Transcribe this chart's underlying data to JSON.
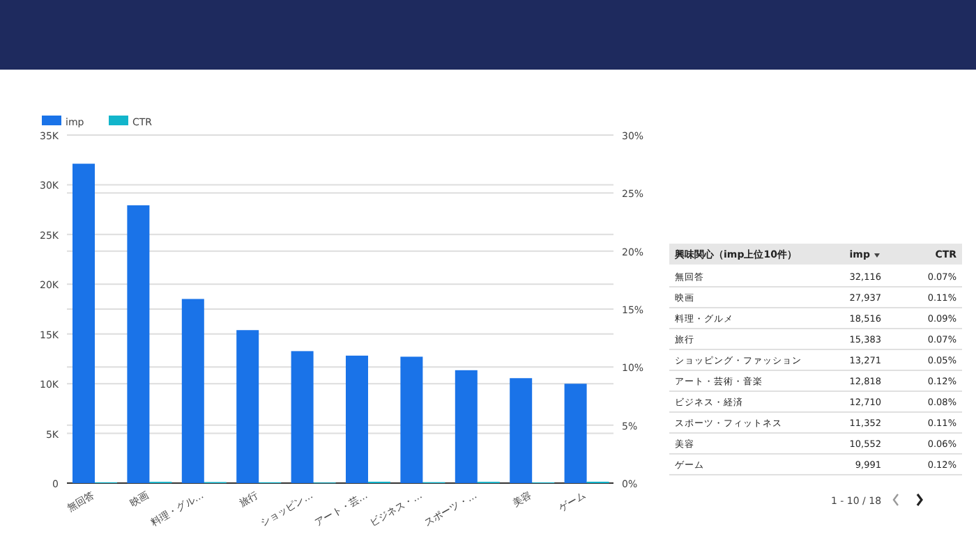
{
  "chart_data": [
    {
      "type": "bar",
      "categories": [
        "無回答",
        "映画",
        "料理・グル…",
        "旅行",
        "ショッピン…",
        "アート・芸…",
        "ビジネス・…",
        "スポーツ・…",
        "美容",
        "ゲーム"
      ],
      "series": [
        {
          "name": "imp",
          "color": "#1a73e8",
          "values": [
            32116,
            27937,
            18516,
            15383,
            13271,
            12818,
            12710,
            11352,
            10552,
            9991
          ]
        },
        {
          "name": "CTR",
          "color": "#12b5cb",
          "axis": "y2",
          "values": [
            0.07,
            0.11,
            0.09,
            0.07,
            0.05,
            0.12,
            0.08,
            0.11,
            0.06,
            0.12
          ]
        }
      ],
      "ylim": [
        0,
        35000
      ],
      "yticks": [
        {
          "value": 0,
          "label": "0"
        },
        {
          "value": 5000,
          "label": "5K"
        },
        {
          "value": 10000,
          "label": "10K"
        },
        {
          "value": 15000,
          "label": "15K"
        },
        {
          "value": 20000,
          "label": "20K"
        },
        {
          "value": 25000,
          "label": "25K"
        },
        {
          "value": 30000,
          "label": "30K"
        },
        {
          "value": 35000,
          "label": "35K"
        }
      ],
      "y2lim": [
        0,
        30
      ],
      "y2ticks": [
        {
          "value": 0,
          "label": "0%"
        },
        {
          "value": 5,
          "label": "5%"
        },
        {
          "value": 10,
          "label": "10%"
        },
        {
          "value": 15,
          "label": "15%"
        },
        {
          "value": 20,
          "label": "20%"
        },
        {
          "value": 25,
          "label": "25%"
        },
        {
          "value": 30,
          "label": "30%"
        }
      ],
      "grid": true,
      "legend": "top left"
    },
    {
      "type": "other",
      "annotations": [
        "興味関心（imp上位10件）",
        "imp",
        "CTR",
        "無回答",
        "32,116",
        "0.07%",
        "映画",
        "27,937",
        "0.11%",
        "料理・グルメ",
        "18,516",
        "0.09%",
        "旅行",
        "15,383",
        "0.07%",
        "ショッピング・ファッション",
        "13,271",
        "0.05%",
        "アート・芸術・音楽",
        "12,818",
        "0.12%",
        "ビジネス・経済",
        "12,710",
        "0.08%",
        "スポーツ・フィットネス",
        "11,352",
        "0.11%",
        "美容",
        "10,552",
        "0.06%",
        "ゲーム",
        "9,991",
        "0.12%",
        "1 - 10 / 18"
      ]
    }
  ]
}
